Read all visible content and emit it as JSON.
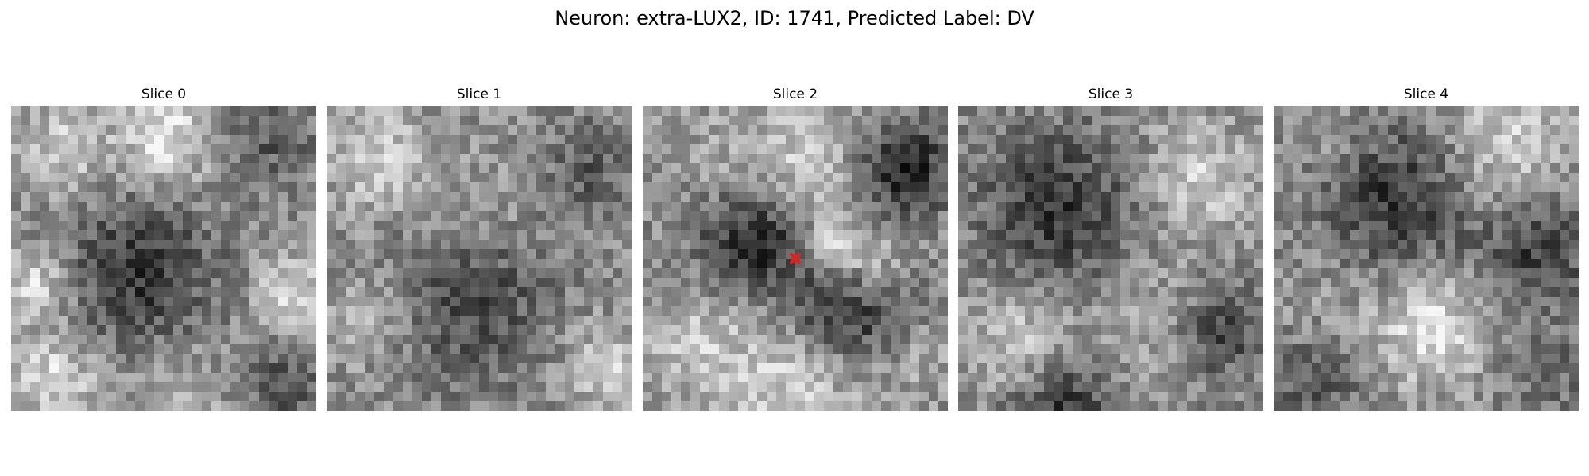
{
  "figure": {
    "title": "Neuron: extra-LUX2, ID: 1741, Predicted Label: DV"
  },
  "slices": [
    {
      "label": "Slice 0"
    },
    {
      "label": "Slice 1"
    },
    {
      "label": "Slice 2",
      "marker": {
        "color": "#d62728",
        "shape": "x-icon"
      }
    },
    {
      "label": "Slice 3"
    },
    {
      "label": "Slice 4"
    }
  ],
  "colormap": "gray"
}
